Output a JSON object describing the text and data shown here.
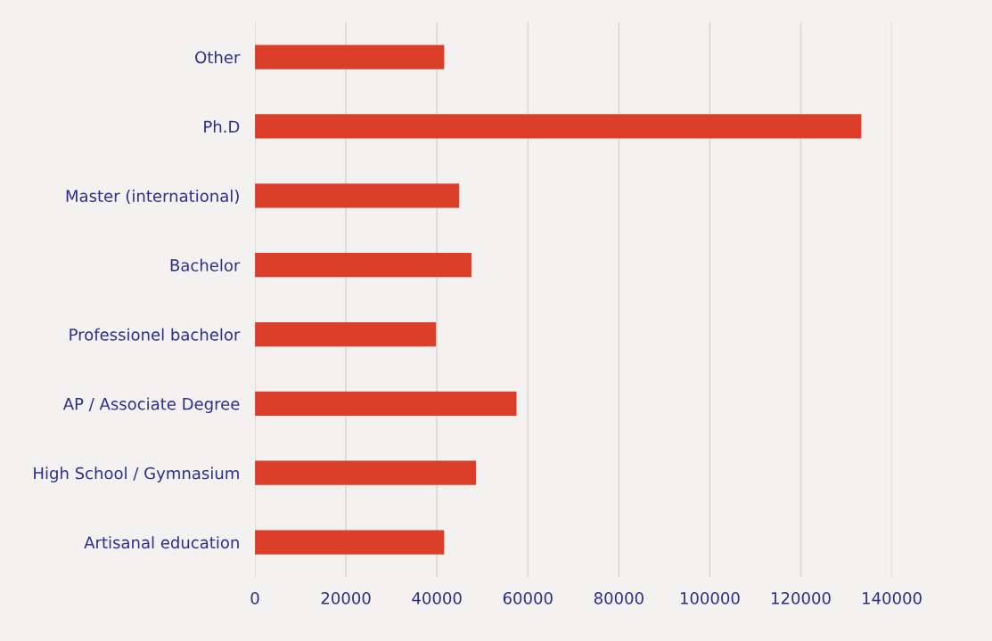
{
  "chart_data": {
    "type": "bar",
    "orientation": "horizontal",
    "categories": [
      "Other",
      "Ph.D",
      "Master (international)",
      "Bachelor",
      "Professionel bachelor",
      "AP / Associate Degree",
      "High School / Gymnasium",
      "Artisanal education"
    ],
    "values": [
      41600,
      133300,
      44900,
      47600,
      39800,
      57500,
      48600,
      41600
    ],
    "color": "#db3e29",
    "xlim": [
      0,
      140000
    ],
    "xticks": [
      0,
      20000,
      40000,
      60000,
      80000,
      100000,
      120000,
      140000
    ],
    "grid": "x",
    "legend": false
  }
}
